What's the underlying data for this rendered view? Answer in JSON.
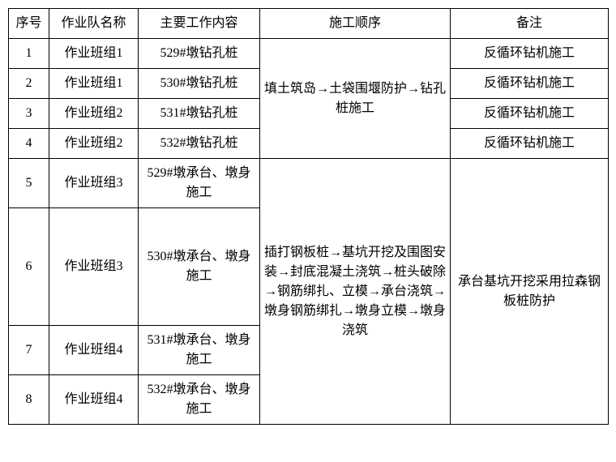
{
  "table": {
    "headers": {
      "seq": "序号",
      "team": "作业队名称",
      "work": "主要工作内容",
      "order": "施工顺序",
      "note": "备注"
    },
    "order_text_top": "填土筑岛→土袋围堰防护→钻孔桩施工",
    "order_text_bottom": "插打钢板桩→基坑开挖及围图安装→封底混凝土浇筑→桩头破除→钢筋绑扎、立模→承台浇筑→墩身钢筋绑扎→墩身立模→墩身浇筑",
    "note_top": "反循环钻机施工",
    "note_bottom": "承台基坑开挖采用拉森钢板桩防护",
    "rows": [
      {
        "seq": "1",
        "team": "作业班组1",
        "work": "529#墩钻孔桩"
      },
      {
        "seq": "2",
        "team": "作业班组1",
        "work": "530#墩钻孔桩"
      },
      {
        "seq": "3",
        "team": "作业班组2",
        "work": "531#墩钻孔桩"
      },
      {
        "seq": "4",
        "team": "作业班组2",
        "work": "532#墩钻孔桩"
      },
      {
        "seq": "5",
        "team": "作业班组3",
        "work": "529#墩承台、墩身施工"
      },
      {
        "seq": "6",
        "team": "作业班组3",
        "work": "530#墩承台、墩身施工"
      },
      {
        "seq": "7",
        "team": "作业班组4",
        "work": "531#墩承台、墩身施工"
      },
      {
        "seq": "8",
        "team": "作业班组4",
        "work": "532#墩承台、墩身施工"
      }
    ],
    "styling": {
      "border_color": "#000000",
      "background_color": "#ffffff",
      "font_size": 16,
      "font_family": "SimSun",
      "col_widths": {
        "seq": 50,
        "team": 110,
        "work": 150,
        "order": 235,
        "note": 195
      }
    }
  }
}
